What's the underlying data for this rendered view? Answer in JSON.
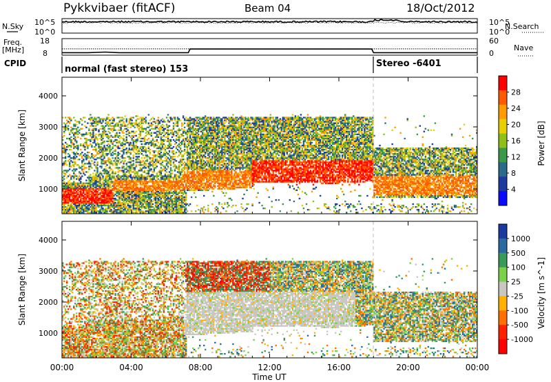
{
  "header": {
    "title": "Pykkvibaer (fitACF)",
    "beam": "Beam 04",
    "date": "18/Oct/2012"
  },
  "top_panels": {
    "nsky_label": "N.Sky",
    "nsky_ticks": [
      "10^5",
      "10^0"
    ],
    "nsearch_label": "N.Search",
    "nsearch_ticks": [
      "10^5",
      "10^0"
    ],
    "freq_label": "Freq.",
    "freq_unit": "[MHz]",
    "freq_ticks": [
      "18",
      "8"
    ],
    "nave_label": "Nave",
    "nave_ticks": [
      "60",
      "0"
    ],
    "cpid_label": "CPID",
    "cpid_segments": [
      {
        "label": "normal (fast stereo) 153",
        "start_h": 0,
        "end_h": 18.0
      },
      {
        "label": "Stereo -6401",
        "start_h": 18.0,
        "end_h": 24
      }
    ],
    "freq_series": [
      {
        "h": 0,
        "v": 9.2
      },
      {
        "h": 1.5,
        "v": 9.2
      },
      {
        "h": 2.5,
        "v": 9.6
      },
      {
        "h": 3.3,
        "v": 9.2
      },
      {
        "h": 7.3,
        "v": 9.2
      },
      {
        "h": 7.4,
        "v": 11.6
      },
      {
        "h": 17.9,
        "v": 11.6
      },
      {
        "h": 18.0,
        "v": 9.2
      },
      {
        "h": 24,
        "v": 9.2
      }
    ],
    "nave_dotted_value": 22
  },
  "chart_data": [
    {
      "type": "heatmap",
      "name": "power",
      "ylabel": "Slant Range [km]",
      "yticks": [
        1000,
        2000,
        3000,
        4000
      ],
      "ylim": [
        200,
        4600
      ],
      "xlim": [
        0,
        24
      ],
      "colorbar_label": "Power [dB]",
      "colorbar_ticks": [
        "28",
        "24",
        "20",
        "16",
        "12",
        "8",
        "4"
      ],
      "colorbar_colors": [
        "#ff0000",
        "#ff5a00",
        "#ff9a00",
        "#e8d000",
        "#90c018",
        "#3a9a4a",
        "#2a6a8a",
        "#1e3aa0",
        "#0a0aff"
      ],
      "bands": [
        {
          "x0": 0.0,
          "x1": 3.0,
          "y0": 500,
          "y1": 1000,
          "level": 0
        },
        {
          "x0": 3.0,
          "x1": 7.0,
          "y0": 900,
          "y1": 1300,
          "level": 1
        },
        {
          "x0": 7.0,
          "x1": 11.0,
          "y0": 950,
          "y1": 1600,
          "level": 1
        },
        {
          "x0": 11.0,
          "x1": 18.0,
          "y0": 1100,
          "y1": 1900,
          "level": 0
        },
        {
          "x0": 18.0,
          "x1": 24.0,
          "y0": 800,
          "y1": 1400,
          "level": 1
        }
      ]
    },
    {
      "type": "heatmap",
      "name": "velocity",
      "ylabel": "Slant Range [km]",
      "yticks": [
        1000,
        2000,
        3000,
        4000
      ],
      "ylim": [
        200,
        4600
      ],
      "xlim": [
        0,
        24
      ],
      "xticks": [
        "00:00",
        "04:00",
        "08:00",
        "12:00",
        "16:00",
        "20:00",
        "00:00"
      ],
      "xlabel": "Time UT",
      "colorbar_label": "Velocity [m s^-1]",
      "colorbar_ticks": [
        "1000",
        "500",
        "100",
        "25",
        "-25",
        "-100",
        "-500",
        "-1000"
      ],
      "colorbar_colors": [
        "#1a3aa0",
        "#2a6aa0",
        "#3a9a5a",
        "#7ad048",
        "#c8c8c0",
        "#ffb000",
        "#ff7000",
        "#ff2000",
        "#ff0000"
      ]
    }
  ]
}
